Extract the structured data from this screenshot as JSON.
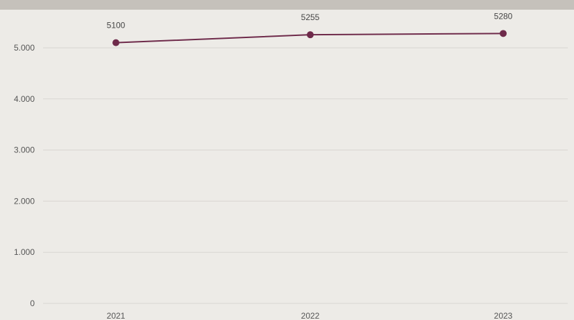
{
  "chart_data": {
    "type": "line",
    "categories": [
      "2021",
      "2022",
      "2023"
    ],
    "series": [
      {
        "values": [
          5100,
          5255,
          5280
        ],
        "color": "#6e2a4a"
      }
    ],
    "data_labels": [
      "5100",
      "5255",
      "5280"
    ],
    "y_ticks": [
      0,
      1000,
      2000,
      3000,
      4000,
      5000
    ],
    "y_tick_labels": [
      "0",
      "1.000",
      "2.000",
      "3.000",
      "4.000",
      "5.000"
    ],
    "ylim": [
      0,
      5000
    ],
    "grid": true,
    "legend": "none",
    "title": "",
    "xlabel": "",
    "ylabel": ""
  },
  "colors": {
    "background": "#edebe7",
    "topbar": "#c5c1bb",
    "line": "#6e2a4a",
    "grid": "#d8d6d2"
  }
}
